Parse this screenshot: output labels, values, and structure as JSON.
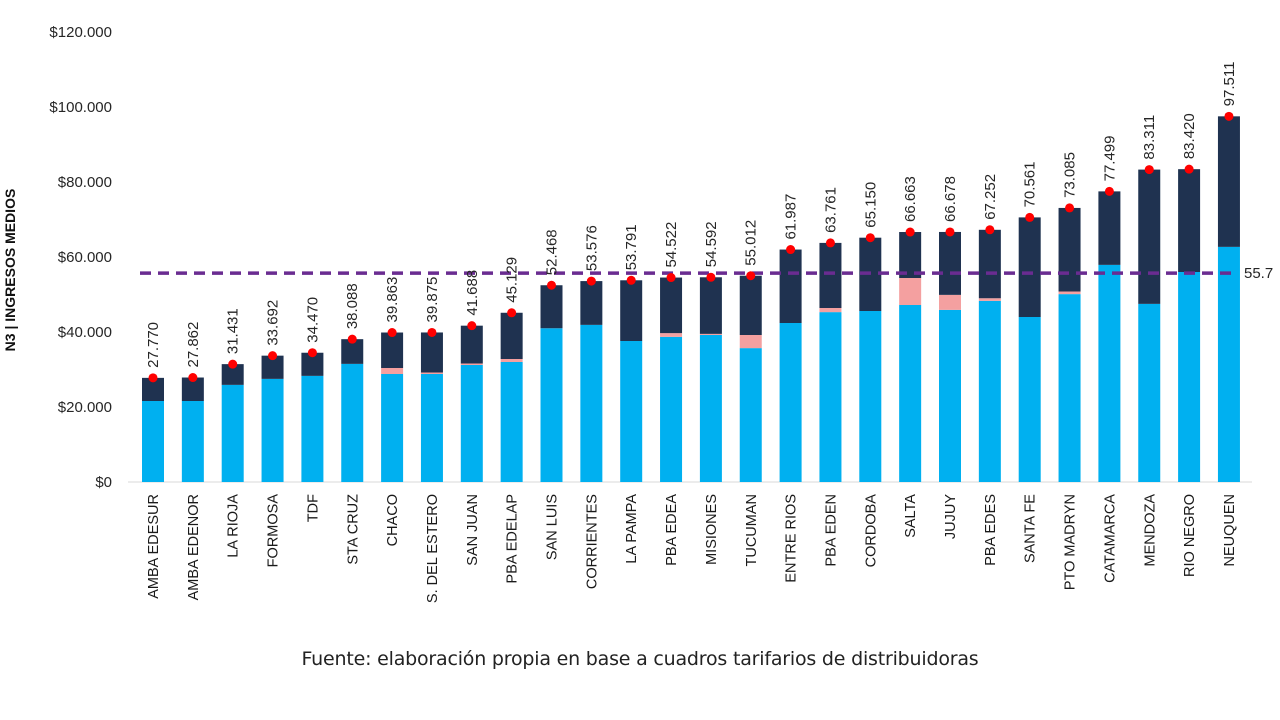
{
  "chart_data": {
    "type": "bar",
    "stacked": true,
    "title": "",
    "xlabel": "",
    "ylabel": "N3 | INGRESOS MEDIOS",
    "ylim": [
      0,
      120000
    ],
    "yticks": [
      0,
      20000,
      40000,
      60000,
      80000,
      100000,
      120000
    ],
    "ytick_labels": [
      "$0",
      "$20.000",
      "$40.000",
      "$60.000",
      "$80.000",
      "$100.000",
      "$120.000"
    ],
    "grid": false,
    "legend": "none",
    "categories": [
      "AMBA EDESUR",
      "AMBA EDENOR",
      "LA RIOJA",
      "FORMOSA",
      "TDF",
      "STA CRUZ",
      "CHACO",
      "S. DEL ESTERO",
      "SAN JUAN",
      "PBA EDELAP",
      "SAN LUIS",
      "CORRIENTES",
      "LA PAMPA",
      "PBA EDEA",
      "MISIONES",
      "TUCUMAN",
      "ENTRE RIOS",
      "PBA EDEN",
      "CORDOBA",
      "SALTA",
      "JUJUY",
      "PBA EDES",
      "SANTA FE",
      "PTO MADRYN",
      "CATAMARCA",
      "MENDOZA",
      "RIO NEGRO",
      "NEUQUEN"
    ],
    "series": [
      {
        "name": "segment-1",
        "color": "#00b0f0",
        "values": [
          21600,
          21600,
          25900,
          27500,
          28300,
          31500,
          28800,
          28800,
          31200,
          32000,
          41000,
          41900,
          37600,
          38700,
          39200,
          35700,
          42400,
          45300,
          45600,
          47200,
          45900,
          48300,
          44000,
          50100,
          57900,
          47500,
          56000,
          62700
        ]
      },
      {
        "name": "segment-2",
        "color": "#f4a0a0",
        "values": [
          0,
          0,
          0,
          0,
          0,
          0,
          1600,
          400,
          400,
          800,
          0,
          0,
          0,
          1000,
          300,
          3500,
          0,
          1100,
          0,
          7200,
          4000,
          700,
          0,
          700,
          0,
          0,
          0,
          0
        ]
      },
      {
        "name": "segment-3",
        "color": "#1f3250",
        "values": [
          6170,
          6262,
          5531,
          6192,
          6170,
          6588,
          9463,
          10675,
          10088,
          12329,
          11468,
          11676,
          16191,
          14822,
          15092,
          15812,
          19587,
          17361,
          19550,
          12263,
          16778,
          18252,
          26561,
          22285,
          19599,
          35811,
          27420,
          34811
        ]
      }
    ],
    "totals": [
      27770,
      27862,
      31431,
      33692,
      34470,
      38088,
      39863,
      39875,
      41688,
      45129,
      52468,
      53576,
      53791,
      54522,
      54592,
      55012,
      61987,
      63761,
      65150,
      66663,
      66678,
      67252,
      70561,
      73085,
      77499,
      83311,
      83420,
      97511
    ],
    "total_labels": [
      "27.770",
      "27.862",
      "31.431",
      "33.692",
      "34.470",
      "38.088",
      "39.863",
      "39.875",
      "41.688",
      "45.129",
      "52.468",
      "53.576",
      "53.791",
      "54.522",
      "54.592",
      "55.012",
      "61.987",
      "63.761",
      "65.150",
      "66.663",
      "66.678",
      "67.252",
      "70.561",
      "73.085",
      "77.499",
      "83.311",
      "83.420",
      "97.511"
    ],
    "total_marker_color": "#ff0000",
    "reference_line": {
      "value": 55700,
      "label": "55.7",
      "color": "#6a2c91",
      "style": "dashed"
    }
  },
  "footer": {
    "source_text": "Fuente: elaboración propia en base a cuadros tarifarios de distribuidoras"
  }
}
